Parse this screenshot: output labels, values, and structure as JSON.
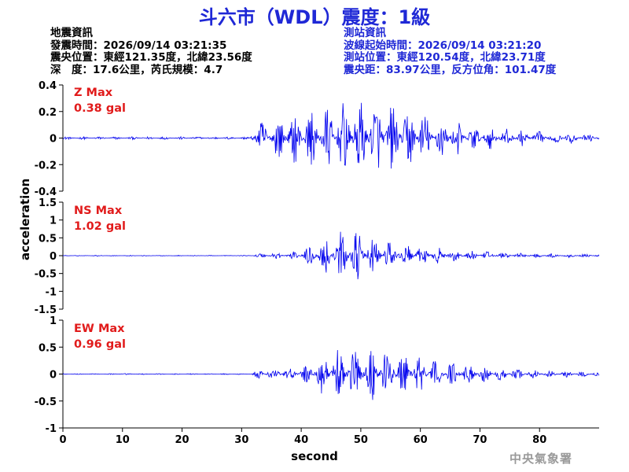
{
  "title": "斗六市（WDL）震度：1級",
  "quake_info": {
    "heading": "地震資訊",
    "time": "發震時間：2026/09/14 03:21:35",
    "epicenter": "震央位置：東經121.35度，北緯23.56度",
    "depth_magnitude": "深　度：17.6公里，芮氏規模：4.7"
  },
  "station_info": {
    "heading": "測站資訊",
    "wave_start": "波線起始時間：2026/09/14 03:21:20",
    "location": "測站位置：東經120.54度，北緯23.71度",
    "distance_azimuth": "震央距：83.97公里，反方位角：101.47度"
  },
  "agency": "中央氣象署",
  "colors": {
    "trace": "#0000ee",
    "title": "#1f28d6",
    "max_label": "#e11b1b",
    "agency": "#9a9a9a"
  },
  "chart_data": {
    "type": "line",
    "xlabel": "second",
    "ylabel": "acceleration",
    "xlim": [
      0,
      90
    ],
    "x_ticks": [
      0,
      10,
      20,
      30,
      40,
      50,
      60,
      70,
      80
    ],
    "grid": false,
    "sample_interval_s": 0.1,
    "panels": [
      {
        "name": "Z",
        "max_label": "Z Max",
        "max_value": "0.38 gal",
        "ylim": [
          -0.4,
          0.4
        ],
        "y_ticks": [
          -0.4,
          -0.2,
          0,
          0.2,
          0.4
        ],
        "y_tick_labels": [
          "-0.4",
          "-0.2",
          "0",
          "0.2",
          "0.4"
        ],
        "envelope": {
          "t": [
            0,
            31.5,
            32,
            40,
            50,
            57,
            62,
            70,
            80,
            90
          ],
          "a": [
            0.01,
            0.01,
            0.12,
            0.2,
            0.3,
            0.26,
            0.17,
            0.09,
            0.05,
            0.03
          ]
        }
      },
      {
        "name": "NS",
        "max_label": "NS Max",
        "max_value": "1.02 gal",
        "ylim": [
          -1.5,
          1.5
        ],
        "y_ticks": [
          -1.5,
          -1,
          -0.5,
          0,
          0.5,
          1,
          1.5
        ],
        "y_tick_labels": [
          "-1.5",
          "-1",
          "-0.5",
          "0",
          "0.5",
          "1",
          "1.5"
        ],
        "envelope": {
          "t": [
            0,
            31.5,
            33,
            40,
            44,
            48,
            52,
            56,
            62,
            70,
            80,
            90
          ],
          "a": [
            0.01,
            0.01,
            0.07,
            0.14,
            0.55,
            0.75,
            0.55,
            0.38,
            0.24,
            0.12,
            0.06,
            0.04
          ]
        }
      },
      {
        "name": "EW",
        "max_label": "EW Max",
        "max_value": "0.96 gal",
        "ylim": [
          -1,
          1
        ],
        "y_ticks": [
          -1,
          -0.5,
          0,
          0.5,
          1
        ],
        "y_tick_labels": [
          "-1",
          "-0.5",
          "0",
          "0.5",
          "1"
        ],
        "envelope": {
          "t": [
            0,
            31.5,
            33,
            40,
            44,
            48,
            52,
            56,
            62,
            70,
            80,
            90
          ],
          "a": [
            0.01,
            0.01,
            0.1,
            0.12,
            0.42,
            0.5,
            0.55,
            0.45,
            0.3,
            0.16,
            0.07,
            0.04
          ]
        }
      }
    ]
  }
}
